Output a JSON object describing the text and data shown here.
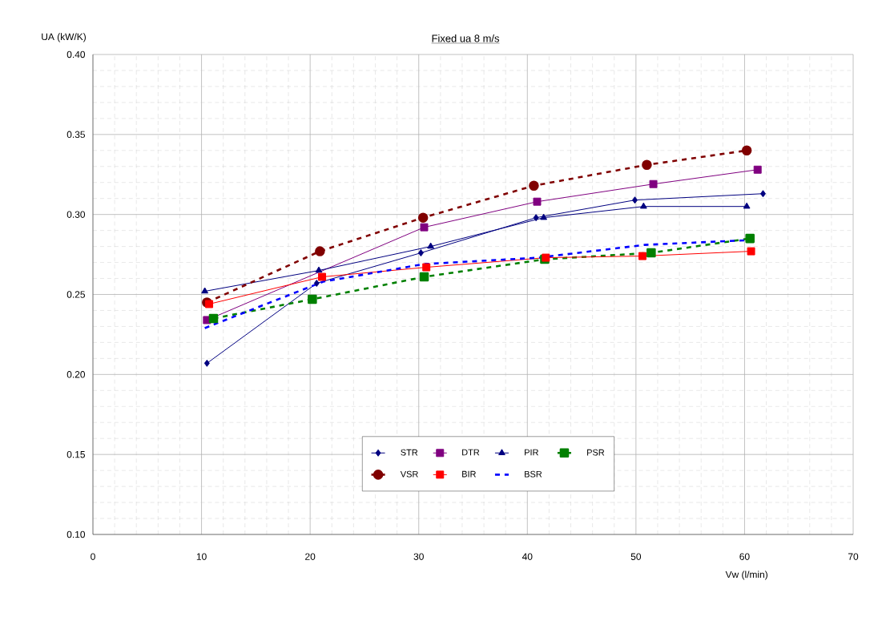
{
  "chart_data": {
    "type": "line",
    "title": "Fixed ua 8 m/s",
    "xlabel": "Vw (l/min)",
    "ylabel": "UA (kW/K)",
    "xlim": [
      0,
      70
    ],
    "xticks": [
      0,
      10,
      20,
      30,
      40,
      50,
      60,
      70
    ],
    "ylim": [
      0.1,
      0.4
    ],
    "yticks": [
      {
        "value": 0.1,
        "label": "0.10"
      },
      0.15,
      {
        "value": 0.2,
        "label": "0.20"
      },
      0.25,
      {
        "value": 0.3,
        "label": "0.30"
      },
      0.35,
      {
        "value": 0.4,
        "label": "0.40"
      }
    ],
    "grid": true,
    "legend": "bottom",
    "series": [
      {
        "name": "STR",
        "color": "#000080",
        "marker": "diamond",
        "line_style": "solid",
        "x": [
          10.5,
          20.6,
          30.2,
          40.8,
          49.9,
          61.7
        ],
        "values": [
          0.207,
          0.257,
          0.276,
          0.298,
          0.309,
          0.313
        ]
      },
      {
        "name": "DTR",
        "color": "#800080",
        "marker": "square",
        "line_style": "solid",
        "x": [
          10.5,
          20.9,
          30.5,
          40.9,
          51.6,
          61.2
        ],
        "values": [
          0.234,
          null,
          0.292,
          0.308,
          0.319,
          0.328
        ]
      },
      {
        "name": "PIR",
        "color": "#000080",
        "marker": "triangle",
        "line_style": "solid",
        "x": [
          10.3,
          20.8,
          31.1,
          41.5,
          50.7,
          60.2
        ],
        "values": [
          0.252,
          0.265,
          0.28,
          0.298,
          0.305,
          0.305
        ]
      },
      {
        "name": "PSR",
        "color": "#008000",
        "marker": "square",
        "line_style": "dashed",
        "x": [
          11.1,
          20.2,
          30.5,
          41.6,
          51.4,
          60.5
        ],
        "values": [
          0.235,
          0.247,
          0.261,
          0.272,
          0.276,
          0.285
        ]
      },
      {
        "name": "VSR",
        "color": "#800000",
        "marker": "circle",
        "line_style": "dashed",
        "x": [
          10.5,
          20.9,
          30.4,
          40.6,
          51.0,
          60.2
        ],
        "values": [
          0.245,
          0.277,
          0.298,
          0.318,
          0.331,
          0.34
        ]
      },
      {
        "name": "BIR",
        "color": "#ff0000",
        "marker": "square",
        "line_style": "solid",
        "x": [
          10.7,
          21.1,
          30.7,
          41.7,
          50.6,
          60.6
        ],
        "values": [
          0.244,
          0.261,
          0.267,
          0.273,
          0.274,
          0.277
        ]
      },
      {
        "name": "BSR",
        "color": "#0000ff",
        "marker": "none",
        "line_style": "dashed",
        "x": [
          10.3,
          21.2,
          30.5,
          41.0,
          50.8,
          60.5
        ],
        "values": [
          0.229,
          0.258,
          0.269,
          0.273,
          0.281,
          0.284
        ]
      }
    ]
  }
}
